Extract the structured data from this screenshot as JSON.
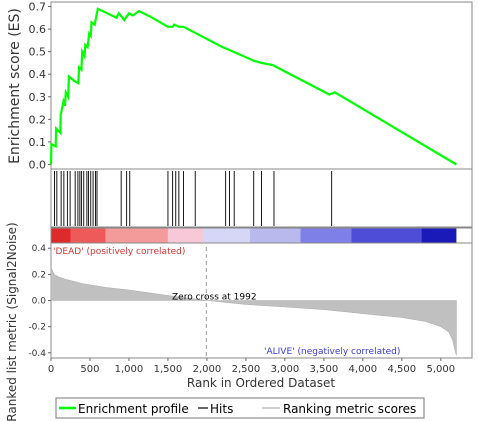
{
  "chart_data": {
    "type": "line",
    "title": "",
    "enrichment": {
      "ylabel": "Enrichment score (ES)",
      "ylim": [
        -0.02,
        0.72
      ],
      "y_ticks": [
        "0.0",
        "0.1",
        "0.2",
        "0.3",
        "0.4",
        "0.5",
        "0.6",
        "0.7"
      ],
      "series": [
        {
          "name": "Enrichment profile",
          "color": "#00ff00",
          "points": [
            [
              0,
              0.0
            ],
            [
              5,
              0.09
            ],
            [
              60,
              0.08
            ],
            [
              65,
              0.16
            ],
            [
              120,
              0.14
            ],
            [
              125,
              0.22
            ],
            [
              160,
              0.28
            ],
            [
              180,
              0.26
            ],
            [
              190,
              0.32
            ],
            [
              220,
              0.3
            ],
            [
              230,
              0.39
            ],
            [
              300,
              0.37
            ],
            [
              350,
              0.36
            ],
            [
              360,
              0.43
            ],
            [
              390,
              0.42
            ],
            [
              400,
              0.5
            ],
            [
              430,
              0.48
            ],
            [
              440,
              0.53
            ],
            [
              470,
              0.52
            ],
            [
              490,
              0.58
            ],
            [
              510,
              0.57
            ],
            [
              520,
              0.63
            ],
            [
              560,
              0.62
            ],
            [
              600,
              0.69
            ],
            [
              840,
              0.65
            ],
            [
              870,
              0.67
            ],
            [
              940,
              0.64
            ],
            [
              1000,
              0.67
            ],
            [
              1050,
              0.66
            ],
            [
              1130,
              0.68
            ],
            [
              1300,
              0.65
            ],
            [
              1500,
              0.61
            ],
            [
              1560,
              0.61
            ],
            [
              1580,
              0.62
            ],
            [
              1640,
              0.61
            ],
            [
              1700,
              0.61
            ],
            [
              2200,
              0.52
            ],
            [
              2270,
              0.51
            ],
            [
              2600,
              0.46
            ],
            [
              2700,
              0.45
            ],
            [
              2850,
              0.44
            ],
            [
              2900,
              0.43
            ],
            [
              3570,
              0.31
            ],
            [
              3640,
              0.32
            ],
            [
              5200,
              0.0
            ]
          ]
        }
      ]
    },
    "hits": {
      "name": "Hits",
      "color": "#000000",
      "positions": [
        45,
        75,
        130,
        165,
        210,
        245,
        310,
        345,
        370,
        390,
        420,
        460,
        480,
        510,
        540,
        570,
        590,
        900,
        970,
        1010,
        1500,
        1560,
        1600,
        1640,
        1700,
        1850,
        2240,
        2290,
        2350,
        2600,
        2700,
        2860,
        3600
      ]
    },
    "ranking": {
      "name": "Ranking metric scores",
      "ylabel": "Ranked list metric (Signal2Noise)",
      "xlabel": "Rank in Ordered Dataset",
      "xlim": [
        0,
        5400
      ],
      "ylim": [
        -0.44,
        0.44
      ],
      "x_ticks": [
        {
          "value": 0,
          "label": "0"
        },
        {
          "value": 500,
          "label": "500"
        },
        {
          "value": 1000,
          "label": "1,000"
        },
        {
          "value": 1500,
          "label": "1,500"
        },
        {
          "value": 2000,
          "label": "2,000"
        },
        {
          "value": 2500,
          "label": "2,500"
        },
        {
          "value": 3000,
          "label": "3,000"
        },
        {
          "value": 3500,
          "label": "3,500"
        },
        {
          "value": 4000,
          "label": "4,000"
        },
        {
          "value": 4500,
          "label": "4,500"
        },
        {
          "value": 5000,
          "label": "5,000"
        }
      ],
      "y_ticks": [
        {
          "value": 0.4,
          "label": "0.4"
        },
        {
          "value": 0.2,
          "label": "0.2"
        },
        {
          "value": 0.0,
          "label": "0.0"
        },
        {
          "value": -0.2,
          "label": "-0.2"
        },
        {
          "value": -0.4,
          "label": "-0.4"
        }
      ],
      "profile": [
        [
          0,
          0.26
        ],
        [
          10,
          0.24
        ],
        [
          40,
          0.2
        ],
        [
          100,
          0.18
        ],
        [
          200,
          0.16
        ],
        [
          400,
          0.13
        ],
        [
          700,
          0.1
        ],
        [
          1000,
          0.08
        ],
        [
          1300,
          0.055
        ],
        [
          1600,
          0.03
        ],
        [
          1992,
          0.0
        ],
        [
          2500,
          -0.03
        ],
        [
          3000,
          -0.05
        ],
        [
          3500,
          -0.07
        ],
        [
          4000,
          -0.1
        ],
        [
          4500,
          -0.13
        ],
        [
          4800,
          -0.16
        ],
        [
          5000,
          -0.2
        ],
        [
          5100,
          -0.24
        ],
        [
          5150,
          -0.3
        ],
        [
          5190,
          -0.4
        ],
        [
          5200,
          -0.42
        ]
      ],
      "zero_cross_label": "Zero cross at 1992",
      "positive_label": "'DEAD' (positively correlated)",
      "negative_label": "'ALIVE' (negatively correlated)",
      "positive_color": "#d63434",
      "negative_color": "#3b3bd6",
      "fill_color": "#c0c0c0"
    },
    "heat_bar": [
      {
        "from": 0,
        "to": 250,
        "color": "#dd2a2a"
      },
      {
        "from": 250,
        "to": 700,
        "color": "#ee5a5a"
      },
      {
        "from": 700,
        "to": 1500,
        "color": "#f39a9a"
      },
      {
        "from": 1500,
        "to": 1950,
        "color": "#f7c8d8"
      },
      {
        "from": 1950,
        "to": 2550,
        "color": "#d6d6f6"
      },
      {
        "from": 2550,
        "to": 3200,
        "color": "#b9b9ee"
      },
      {
        "from": 3200,
        "to": 3850,
        "color": "#7f7fe8"
      },
      {
        "from": 3850,
        "to": 4750,
        "color": "#4d4dd8"
      },
      {
        "from": 4750,
        "to": 5200,
        "color": "#1a1ab8"
      }
    ],
    "legend": {
      "placement": "bottom",
      "items": [
        {
          "label": "Enrichment profile",
          "color": "#00ff00"
        },
        {
          "label": "Hits",
          "color": "#000000"
        },
        {
          "label": "Ranking metric scores",
          "color": "#c0c0c0"
        }
      ]
    }
  }
}
